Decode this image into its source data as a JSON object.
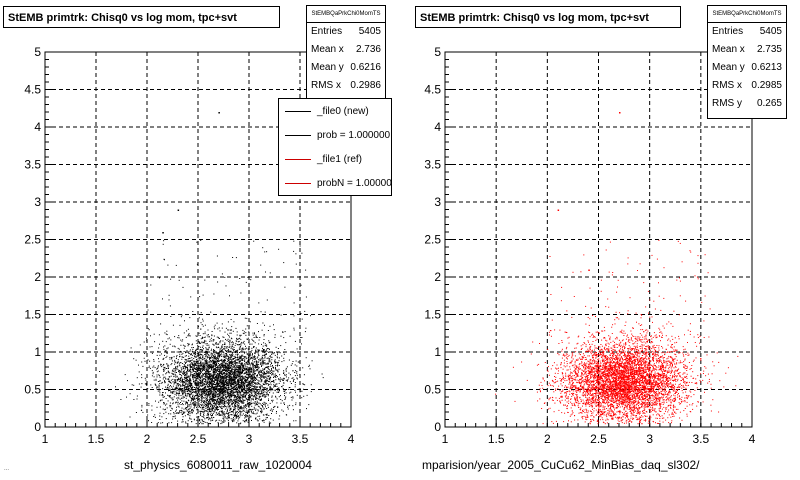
{
  "chart_data": [
    {
      "type": "scatter",
      "title": "StEMB primtrk: Chisq0 vs log mom, tpc+svt",
      "xlabel": "st_physics_6080011_raw_1020004",
      "ylabel": "",
      "xlim": [
        1,
        4
      ],
      "ylim": [
        0,
        5
      ],
      "x_ticks": [
        "1",
        "1.5",
        "2",
        "2.5",
        "3",
        "3.5",
        "4"
      ],
      "y_ticks": [
        "0",
        "0.5",
        "1",
        "1.5",
        "2",
        "2.5",
        "3",
        "3.5",
        "4",
        "4.5",
        "5"
      ],
      "grid": true,
      "marker_color": "#000000",
      "stats": {
        "name": "StEMBQaPrkChi0MomTS",
        "rows": [
          {
            "label": "Entries",
            "value": "5405"
          },
          {
            "label": "Mean x",
            "value": "2.736"
          },
          {
            "label": "Mean y",
            "value": "0.6216"
          },
          {
            "label": "RMS x",
            "value": "0.2986"
          }
        ]
      },
      "legend": {
        "placement": "upper-right",
        "entries": [
          {
            "label": "_file0 (new)",
            "color": "#000000"
          },
          {
            "label": "prob = 1.000000",
            "color": "#000000"
          },
          {
            "label": "_file1 (ref)",
            "color": "#cc0000"
          },
          {
            "label": "probN = 1.000000",
            "color": "#cc0000"
          }
        ]
      },
      "series": [
        {
          "entries": 5405,
          "mean_x": 2.736,
          "mean_y": 0.6216,
          "rms_x": 0.2986,
          "rms_y": 0.265,
          "outliers": [
            [
              2.7,
              4.2
            ],
            [
              2.3,
              2.9
            ],
            [
              2.15,
              2.6
            ]
          ]
        }
      ]
    },
    {
      "type": "scatter",
      "title": "StEMB primtrk: Chisq0 vs log mom, tpc+svt",
      "xlabel": "mparision/year_2005_CuCu62_MinBias_daq_sl302/",
      "ylabel": "",
      "xlim": [
        1,
        4
      ],
      "ylim": [
        0,
        5
      ],
      "x_ticks": [
        "1",
        "1.5",
        "2",
        "2.5",
        "3",
        "3.5",
        "4"
      ],
      "y_ticks": [
        "0",
        "0.5",
        "1",
        "1.5",
        "2",
        "2.5",
        "3",
        "3.5",
        "4",
        "4.5",
        "5"
      ],
      "grid": true,
      "marker_color": "#ff0000",
      "stats": {
        "name": "StEMBQaPrkChi0MomTS",
        "rows": [
          {
            "label": "Entries",
            "value": "5405"
          },
          {
            "label": "Mean x",
            "value": "2.735"
          },
          {
            "label": "Mean y",
            "value": "0.6213"
          },
          {
            "label": "RMS x",
            "value": "0.2985"
          },
          {
            "label": "RMS y",
            "value": "0.265"
          }
        ]
      },
      "series": [
        {
          "entries": 5405,
          "mean_x": 2.735,
          "mean_y": 0.6213,
          "rms_x": 0.2985,
          "rms_y": 0.265,
          "outliers": [
            [
              2.7,
              4.2
            ],
            [
              2.1,
              2.9
            ],
            [
              2.4,
              2.1
            ]
          ]
        }
      ]
    }
  ],
  "corner_text": "..."
}
